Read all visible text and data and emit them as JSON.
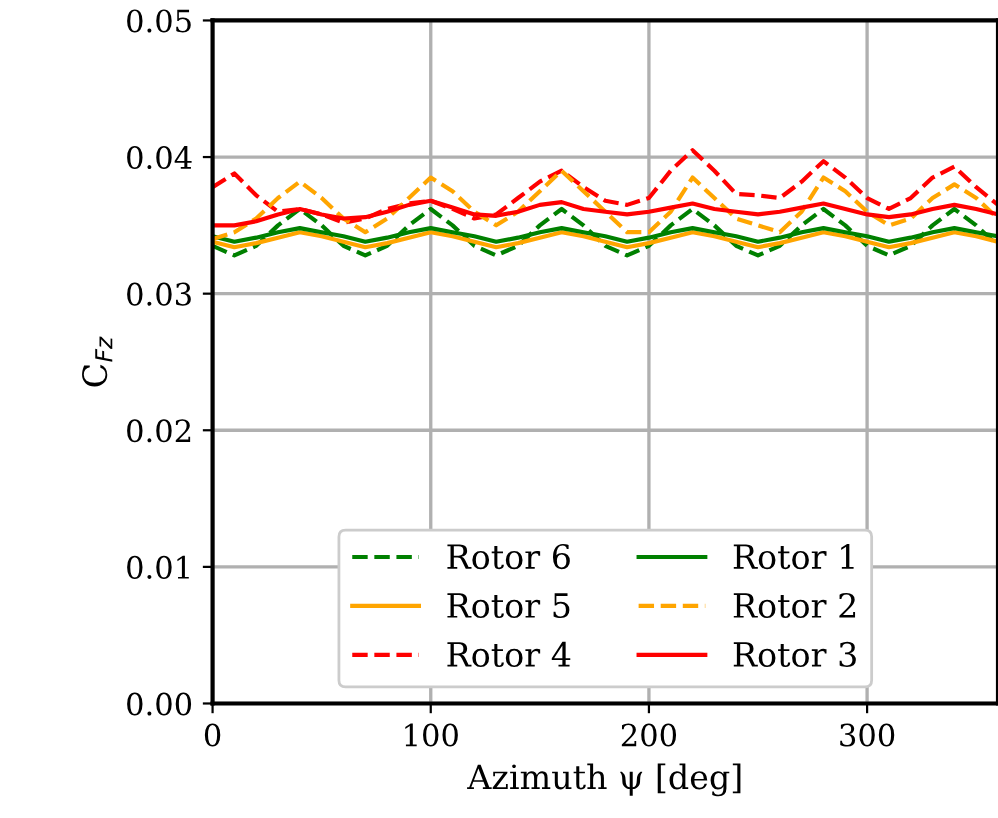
{
  "chart_data": {
    "type": "line",
    "xlabel": "Azimuth ψ [deg]",
    "ylabel": "C$_{Fz}$",
    "x": [
      0,
      10,
      20,
      30,
      40,
      50,
      60,
      70,
      80,
      90,
      100,
      110,
      120,
      130,
      140,
      150,
      160,
      170,
      180,
      190,
      200,
      210,
      220,
      230,
      240,
      250,
      260,
      270,
      280,
      290,
      300,
      310,
      320,
      330,
      340,
      350,
      360
    ],
    "series": [
      {
        "name": "Rotor 6",
        "color": "#008000",
        "line_style": "dashed",
        "values": [
          0.0335,
          0.0328,
          0.0335,
          0.035,
          0.0362,
          0.035,
          0.0335,
          0.0328,
          0.0335,
          0.035,
          0.0362,
          0.035,
          0.0335,
          0.0328,
          0.0335,
          0.035,
          0.0362,
          0.035,
          0.0335,
          0.0328,
          0.0335,
          0.035,
          0.0362,
          0.035,
          0.0335,
          0.0328,
          0.0335,
          0.035,
          0.0362,
          0.035,
          0.0335,
          0.0328,
          0.0335,
          0.035,
          0.0362,
          0.035,
          0.0335
        ]
      },
      {
        "name": "Rotor 5",
        "color": "#ffa500",
        "line_style": "solid",
        "values": [
          0.0338,
          0.0334,
          0.0337,
          0.0341,
          0.0345,
          0.0342,
          0.0338,
          0.0334,
          0.0337,
          0.0341,
          0.0345,
          0.0342,
          0.0338,
          0.0334,
          0.0337,
          0.0341,
          0.0345,
          0.0342,
          0.0338,
          0.0334,
          0.0337,
          0.0341,
          0.0345,
          0.0342,
          0.0338,
          0.0334,
          0.0337,
          0.0341,
          0.0345,
          0.0342,
          0.0338,
          0.0334,
          0.0337,
          0.0341,
          0.0345,
          0.0342,
          0.0338
        ]
      },
      {
        "name": "Rotor 4",
        "color": "#ff0000",
        "line_style": "dashed",
        "values": [
          0.0378,
          0.0388,
          0.0372,
          0.036,
          0.0362,
          0.0358,
          0.0352,
          0.0355,
          0.0362,
          0.0366,
          0.0368,
          0.0362,
          0.0355,
          0.0358,
          0.037,
          0.0382,
          0.039,
          0.0378,
          0.0368,
          0.0365,
          0.037,
          0.039,
          0.0405,
          0.039,
          0.0373,
          0.0372,
          0.037,
          0.0382,
          0.0397,
          0.0385,
          0.037,
          0.0362,
          0.037,
          0.0385,
          0.0393,
          0.0378,
          0.0365
        ]
      },
      {
        "name": "Rotor 1",
        "color": "#008000",
        "line_style": "solid",
        "values": [
          0.0342,
          0.0338,
          0.0341,
          0.0345,
          0.0348,
          0.0345,
          0.0342,
          0.0338,
          0.0341,
          0.0345,
          0.0348,
          0.0345,
          0.0342,
          0.0338,
          0.0341,
          0.0345,
          0.0348,
          0.0345,
          0.0342,
          0.0338,
          0.0341,
          0.0345,
          0.0348,
          0.0345,
          0.0342,
          0.0338,
          0.0341,
          0.0345,
          0.0348,
          0.0345,
          0.0342,
          0.0338,
          0.0341,
          0.0345,
          0.0348,
          0.0345,
          0.0342
        ]
      },
      {
        "name": "Rotor 2",
        "color": "#ffa500",
        "line_style": "dashed",
        "values": [
          0.034,
          0.0345,
          0.0355,
          0.037,
          0.0382,
          0.037,
          0.0355,
          0.0345,
          0.0355,
          0.037,
          0.0385,
          0.0375,
          0.036,
          0.035,
          0.036,
          0.0375,
          0.039,
          0.0375,
          0.036,
          0.0345,
          0.0345,
          0.036,
          0.0385,
          0.037,
          0.0355,
          0.035,
          0.0345,
          0.036,
          0.0385,
          0.0375,
          0.036,
          0.035,
          0.0355,
          0.037,
          0.038,
          0.037,
          0.0355
        ]
      },
      {
        "name": "Rotor 3",
        "color": "#ff0000",
        "line_style": "solid",
        "values": [
          0.035,
          0.035,
          0.0353,
          0.0358,
          0.0362,
          0.0358,
          0.0355,
          0.0356,
          0.036,
          0.0365,
          0.0368,
          0.0363,
          0.0358,
          0.0357,
          0.036,
          0.0365,
          0.0367,
          0.0362,
          0.036,
          0.0358,
          0.036,
          0.0363,
          0.0366,
          0.0362,
          0.036,
          0.0358,
          0.036,
          0.0363,
          0.0366,
          0.0362,
          0.0358,
          0.0356,
          0.0358,
          0.0362,
          0.0365,
          0.0362,
          0.0358
        ]
      }
    ],
    "xlim": [
      0,
      360
    ],
    "ylim": [
      0,
      0.05
    ],
    "xticks": [
      0,
      100,
      200,
      300
    ],
    "yticks": [
      {
        "value": 0,
        "label": "0.00"
      },
      {
        "value": 0.01,
        "label": "0.01"
      },
      {
        "value": 0.02,
        "label": "0.02"
      },
      {
        "value": 0.03,
        "label": "0.03"
      },
      {
        "value": 0.04,
        "label": "0.04"
      },
      {
        "value": 0.05,
        "label": "0.05"
      }
    ],
    "grid": true,
    "legend": "bottom",
    "marker": "none"
  }
}
